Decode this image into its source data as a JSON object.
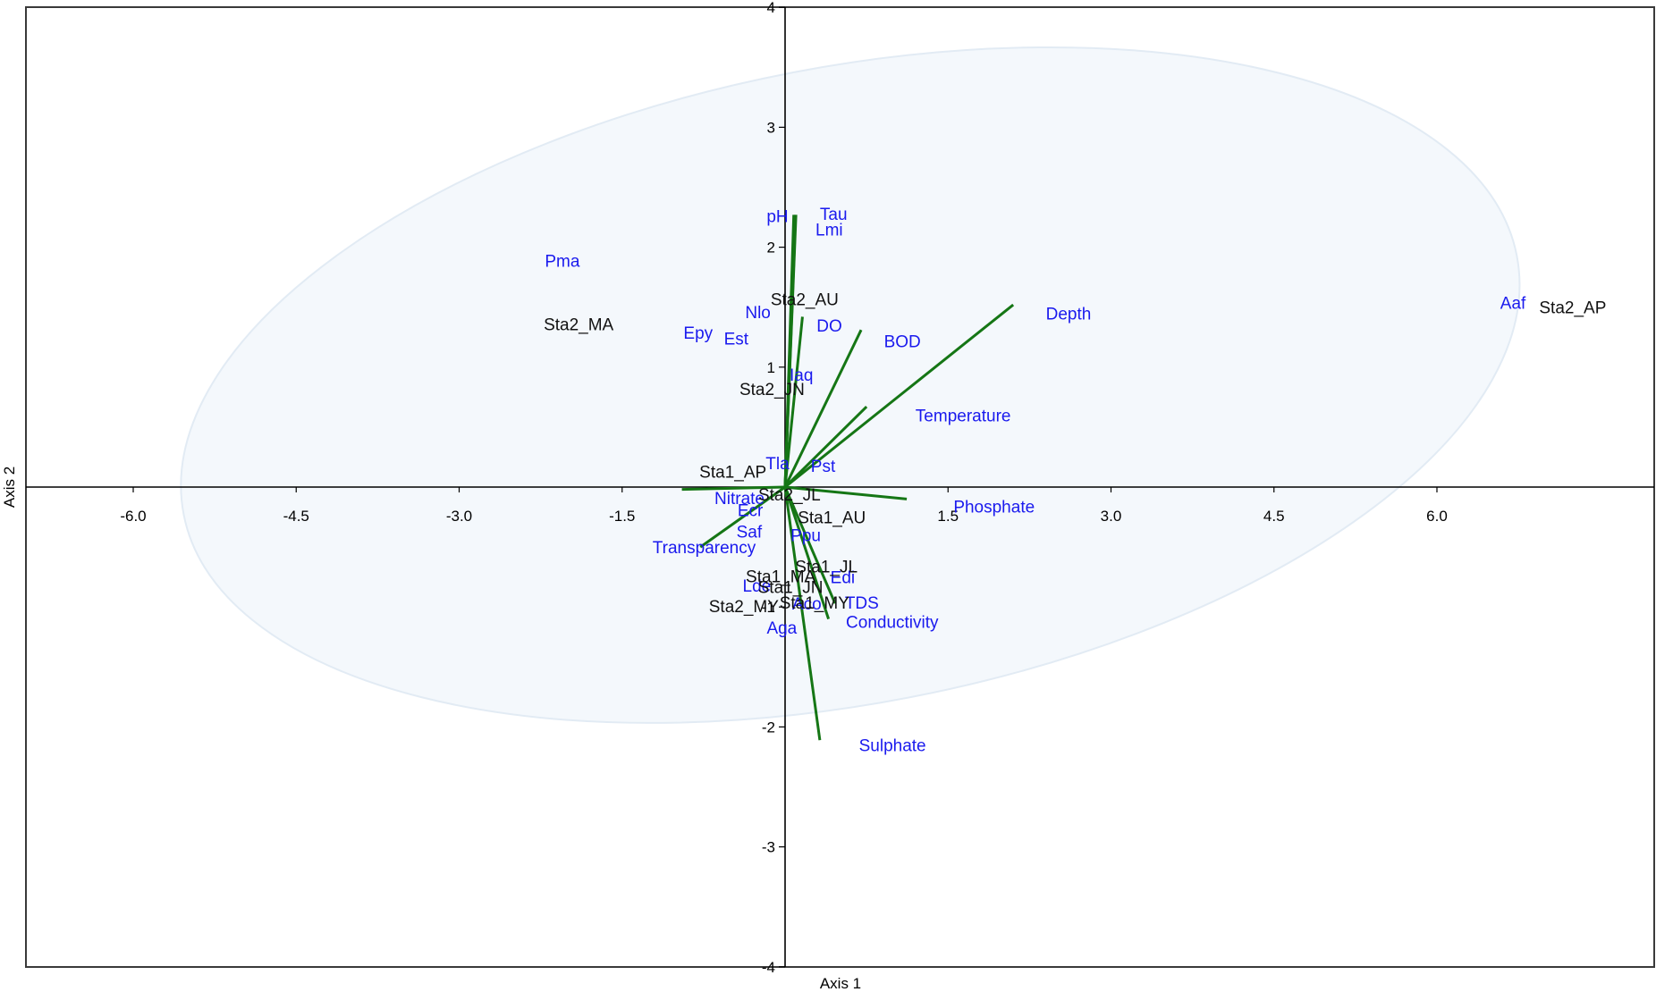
{
  "chart_data": {
    "type": "scatter",
    "title": "",
    "xlabel": "Axis 1",
    "ylabel": "Axis 2",
    "xlim": [
      -7.0,
      8.0
    ],
    "ylim": [
      -4.0,
      4.0
    ],
    "grid": false,
    "x_ticks": [
      "-6.0",
      "-4.5",
      "-3.0",
      "-1.5",
      "1.5",
      "3.0",
      "4.5",
      "6.0"
    ],
    "y_ticks": [
      "4",
      "3",
      "2",
      "1",
      "-1",
      "-2",
      "-3",
      "-4"
    ],
    "colors": {
      "vector": "#157615",
      "species": "#1a1aee",
      "site": "#111111",
      "ellipse_fill": "#f4f8fc",
      "ellipse_stroke": "#e2ebf4"
    },
    "ellipse": {
      "center": [
        0.6,
        0.85
      ],
      "width": 12.5,
      "height": 5.3,
      "angle_deg": 11
    },
    "vectors": [
      {
        "name": "pH",
        "x": 0.08,
        "y": 2.27,
        "lx": -0.17,
        "ly": 2.26
      },
      {
        "name": "Tau",
        "x": 0.1,
        "y": 2.27,
        "lx": 0.32,
        "ly": 2.28
      },
      {
        "name": "Lmi",
        "x": 0.09,
        "y": 2.1,
        "lx": 0.28,
        "ly": 2.15
      },
      {
        "name": "DO",
        "x": 0.16,
        "y": 1.42,
        "lx": 0.29,
        "ly": 1.35
      },
      {
        "name": "BOD",
        "x": 0.7,
        "y": 1.31,
        "lx": 0.91,
        "ly": 1.22
      },
      {
        "name": "Depth",
        "x": 2.1,
        "y": 1.52,
        "lx": 2.4,
        "ly": 1.45
      },
      {
        "name": "Temperature",
        "x": 0.75,
        "y": 0.67,
        "lx": 1.2,
        "ly": 0.6
      },
      {
        "name": "Phosphate",
        "x": 1.12,
        "y": -0.1,
        "lx": 1.55,
        "ly": -0.16
      },
      {
        "name": "Nitrate",
        "x": -0.95,
        "y": -0.02,
        "lx": -0.65,
        "ly": -0.09
      },
      {
        "name": "Transparency",
        "x": -0.78,
        "y": -0.5,
        "lx": -1.22,
        "ly": -0.5
      },
      {
        "name": "Conductivity",
        "x": 0.4,
        "y": -1.1,
        "lx": 0.56,
        "ly": -1.12
      },
      {
        "name": "TDS",
        "x": 0.46,
        "y": -0.97,
        "lx": 0.55,
        "ly": -0.96
      },
      {
        "name": "Sulphate",
        "x": 0.32,
        "y": -2.11,
        "lx": 0.68,
        "ly": -2.15
      }
    ],
    "species": [
      {
        "name": "Pma",
        "x": -2.05,
        "y": 1.89
      },
      {
        "name": "Nlo",
        "x": -0.25,
        "y": 1.46
      },
      {
        "name": "Epy",
        "x": -0.8,
        "y": 1.29
      },
      {
        "name": "Est",
        "x": -0.45,
        "y": 1.24
      },
      {
        "name": "Iaq",
        "x": 0.15,
        "y": 0.94
      },
      {
        "name": "Tla",
        "x": -0.07,
        "y": 0.2
      },
      {
        "name": "Pst",
        "x": 0.35,
        "y": 0.18
      },
      {
        "name": "Ecr",
        "x": -0.32,
        "y": -0.19
      },
      {
        "name": "Saf",
        "x": -0.33,
        "y": -0.37
      },
      {
        "name": "Ppu",
        "x": 0.19,
        "y": -0.4
      },
      {
        "name": "Edi",
        "x": 0.53,
        "y": -0.75
      },
      {
        "name": "Lde",
        "x": -0.26,
        "y": -0.82
      },
      {
        "name": "Aco",
        "x": 0.2,
        "y": -0.97
      },
      {
        "name": "Aga",
        "x": -0.03,
        "y": -1.17
      },
      {
        "name": "Aaf",
        "x": 6.7,
        "y": 1.54
      }
    ],
    "sites": [
      {
        "name": "Sta2_AP",
        "x": 7.25,
        "y": 1.5
      },
      {
        "name": "Sta2_MA",
        "x": -1.9,
        "y": 1.36
      },
      {
        "name": "Sta2_AU",
        "x": 0.18,
        "y": 1.57
      },
      {
        "name": "Sta2_JN",
        "x": -0.12,
        "y": 0.82
      },
      {
        "name": "Sta1_AP",
        "x": -0.48,
        "y": 0.13
      },
      {
        "name": "Sta2_JL",
        "x": 0.04,
        "y": -0.06
      },
      {
        "name": "Sta1_AU",
        "x": 0.43,
        "y": -0.25
      },
      {
        "name": "Sta1_JL",
        "x": 0.38,
        "y": -0.66
      },
      {
        "name": "Sta1_MA",
        "x": -0.04,
        "y": -0.74
      },
      {
        "name": "Sta1_JN",
        "x": 0.05,
        "y": -0.83
      },
      {
        "name": "Sta2_MY",
        "x": -0.38,
        "y": -0.99
      },
      {
        "name": "Sta1_MY",
        "x": 0.27,
        "y": -0.96
      }
    ]
  }
}
